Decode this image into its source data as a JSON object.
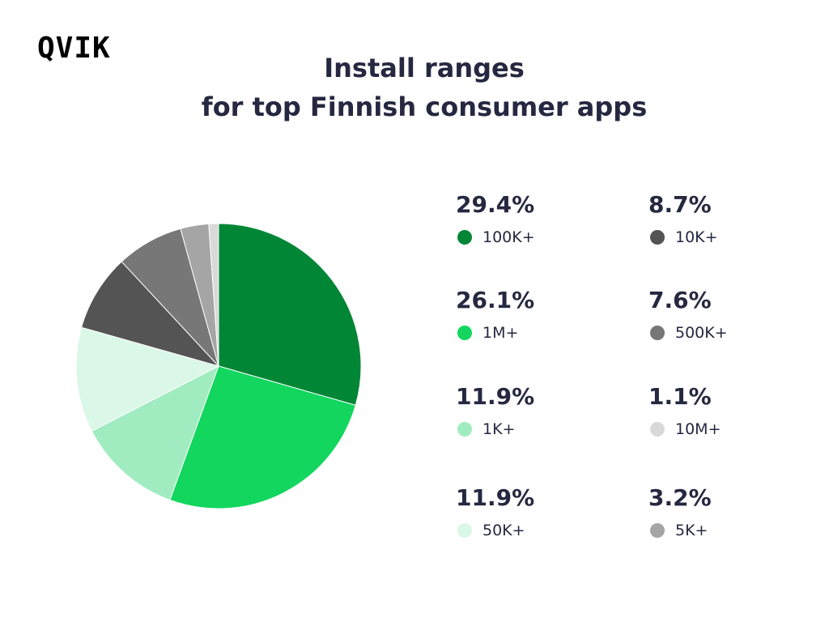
{
  "logo": {
    "text": "QVIK"
  },
  "header": {
    "title_line1": "Install ranges",
    "title_line2": "for top Finnish consumer apps"
  },
  "chart_data": {
    "type": "pie",
    "title": "Install ranges for top Finnish consumer apps",
    "slices": [
      {
        "label": "100K+",
        "value": 29.4,
        "display": "29.4%",
        "color": "#018636"
      },
      {
        "label": "1M+",
        "value": 26.1,
        "display": "26.1%",
        "color": "#12d65e"
      },
      {
        "label": "1K+",
        "value": 11.9,
        "display": "11.9%",
        "color": "#a0ecc0"
      },
      {
        "label": "50K+",
        "value": 11.9,
        "display": "11.9%",
        "color": "#daf7e7"
      },
      {
        "label": "10K+",
        "value": 8.7,
        "display": "8.7%",
        "color": "#545454"
      },
      {
        "label": "500K+",
        "value": 7.6,
        "display": "7.6%",
        "color": "#777777"
      },
      {
        "label": "5K+",
        "value": 3.2,
        "display": "3.2%",
        "color": "#a5a5a5"
      },
      {
        "label": "10M+",
        "value": 1.1,
        "display": "1.1%",
        "color": "#d9d9d9"
      }
    ],
    "legend": {
      "placement": "right",
      "columns": [
        [
          "100K+",
          "1M+",
          "1K+",
          "50K+"
        ],
        [
          "10K+",
          "500K+",
          "10M+",
          "5K+"
        ]
      ]
    }
  }
}
